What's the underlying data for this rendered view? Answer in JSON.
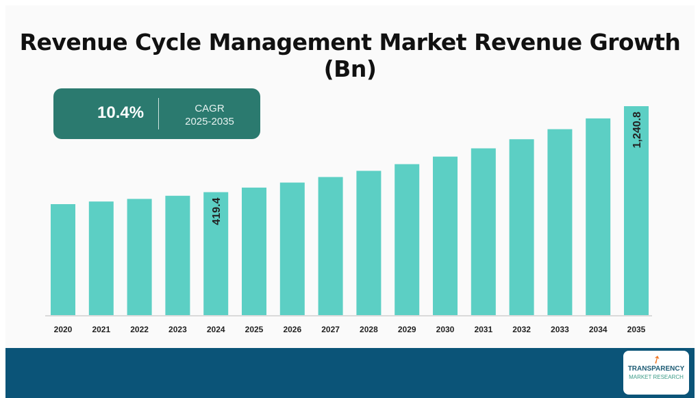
{
  "title": "Revenue Cycle Management Market Revenue Growth (Bn)",
  "cagr": {
    "value": "10.4%",
    "label": "CAGR",
    "period": "2025-2035"
  },
  "logo": {
    "line1": "TRANSPARENCY",
    "line2": "MARKET RESEARCH"
  },
  "colors": {
    "bar": "#5ccfc4",
    "cagr_box": "#2b7a6f",
    "footer": "#0b5478"
  },
  "chart_data": {
    "type": "bar",
    "title": "Revenue Cycle Management Market Revenue Growth (Bn)",
    "categories": [
      "2020",
      "2021",
      "2022",
      "2023",
      "2024",
      "2025",
      "2026",
      "2027",
      "2028",
      "2029",
      "2030",
      "2031",
      "2032",
      "2033",
      "2034",
      "2035"
    ],
    "values": [
      305,
      330,
      355,
      385,
      419.4,
      463,
      511,
      564,
      623,
      687,
      759,
      838,
      925,
      1021,
      1124,
      1240.8
    ],
    "data_labels": {
      "2024": "419.4",
      "2035": "1,240.8"
    },
    "xlabel": "",
    "ylabel": "",
    "grid": false,
    "legend": "none"
  }
}
